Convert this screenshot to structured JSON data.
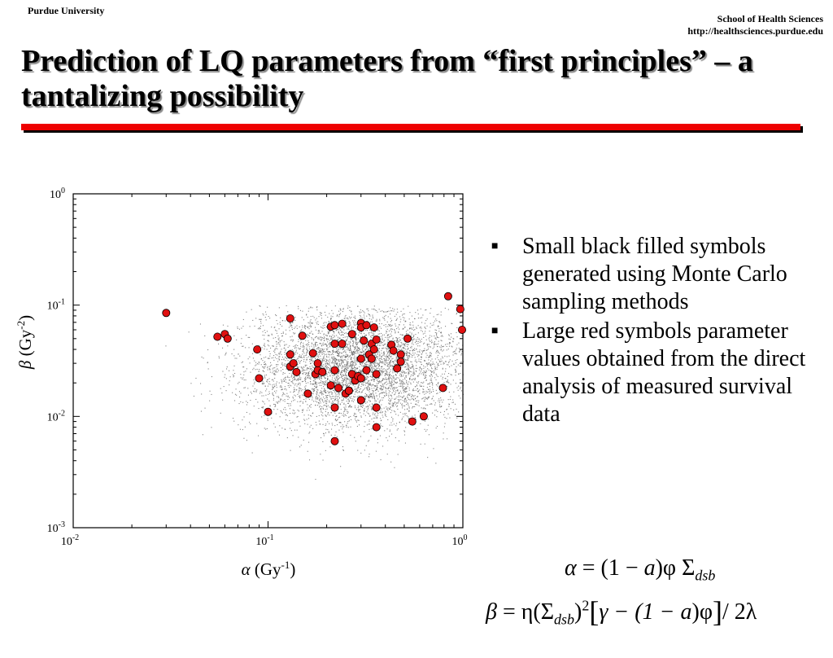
{
  "header": {
    "left": "Purdue University",
    "right_line1": "School of Health Sciences",
    "right_line2": "http://healthsciences.purdue.edu"
  },
  "title": "Prediction of LQ parameters from “first principles” – a tantalizing possibility",
  "colors": {
    "rule": "#ee0000",
    "points": "#e01010",
    "cloud": "#666666"
  },
  "chart_data": {
    "type": "scatter",
    "x_scale": "log",
    "y_scale": "log",
    "xlim": [
      0.01,
      1
    ],
    "ylim": [
      0.001,
      1
    ],
    "x_ticks": [
      {
        "base": "10",
        "exp": "-2"
      },
      {
        "base": "10",
        "exp": "-1"
      },
      {
        "base": "10",
        "exp": "0"
      }
    ],
    "y_ticks": [
      {
        "base": "10",
        "exp": "0"
      },
      {
        "base": "10",
        "exp": "-1"
      },
      {
        "base": "10",
        "exp": "-2"
      },
      {
        "base": "10",
        "exp": "-3"
      }
    ],
    "xlabel": {
      "symbol": "α",
      "unit_open": " (Gy",
      "unit_exp": "-1",
      "unit_close": ")"
    },
    "ylabel": {
      "symbol": "β",
      "unit_open": " (Gy",
      "unit_exp": "-2",
      "unit_close": ")"
    },
    "series": [
      {
        "name": "Small black filled symbols generated using Monte Carlo sampling methods",
        "style": "small black dots (Monte Carlo cloud)",
        "distribution": {
          "alpha_range": [
            0.02,
            1.0
          ],
          "beta_range": [
            0.002,
            0.1
          ]
        }
      },
      {
        "name": "Large red symbols parameter values obtained from the direct analysis of measured survival data",
        "points": [
          [
            0.03,
            0.085
          ],
          [
            0.055,
            0.052
          ],
          [
            0.06,
            0.055
          ],
          [
            0.062,
            0.05
          ],
          [
            0.088,
            0.04
          ],
          [
            0.09,
            0.022
          ],
          [
            0.1,
            0.011
          ],
          [
            0.13,
            0.076
          ],
          [
            0.13,
            0.036
          ],
          [
            0.13,
            0.028
          ],
          [
            0.135,
            0.03
          ],
          [
            0.14,
            0.025
          ],
          [
            0.15,
            0.053
          ],
          [
            0.16,
            0.016
          ],
          [
            0.17,
            0.037
          ],
          [
            0.175,
            0.024
          ],
          [
            0.18,
            0.026
          ],
          [
            0.18,
            0.03
          ],
          [
            0.19,
            0.025
          ],
          [
            0.21,
            0.064
          ],
          [
            0.21,
            0.019
          ],
          [
            0.22,
            0.066
          ],
          [
            0.22,
            0.045
          ],
          [
            0.22,
            0.026
          ],
          [
            0.22,
            0.012
          ],
          [
            0.22,
            0.006
          ],
          [
            0.23,
            0.018
          ],
          [
            0.24,
            0.068
          ],
          [
            0.24,
            0.045
          ],
          [
            0.25,
            0.016
          ],
          [
            0.26,
            0.017
          ],
          [
            0.26,
            0.017
          ],
          [
            0.27,
            0.055
          ],
          [
            0.27,
            0.024
          ],
          [
            0.28,
            0.021
          ],
          [
            0.29,
            0.023
          ],
          [
            0.3,
            0.069
          ],
          [
            0.3,
            0.063
          ],
          [
            0.3,
            0.033
          ],
          [
            0.3,
            0.022
          ],
          [
            0.3,
            0.014
          ],
          [
            0.31,
            0.048
          ],
          [
            0.32,
            0.066
          ],
          [
            0.32,
            0.026
          ],
          [
            0.33,
            0.036
          ],
          [
            0.34,
            0.033
          ],
          [
            0.34,
            0.045
          ],
          [
            0.35,
            0.063
          ],
          [
            0.35,
            0.04
          ],
          [
            0.36,
            0.049
          ],
          [
            0.36,
            0.024
          ],
          [
            0.36,
            0.012
          ],
          [
            0.36,
            0.008
          ],
          [
            0.43,
            0.044
          ],
          [
            0.44,
            0.039
          ],
          [
            0.46,
            0.027
          ],
          [
            0.48,
            0.036
          ],
          [
            0.48,
            0.031
          ],
          [
            0.52,
            0.05
          ],
          [
            0.55,
            0.009
          ],
          [
            0.63,
            0.01
          ],
          [
            0.79,
            0.018
          ],
          [
            0.84,
            0.12
          ],
          [
            0.97,
            0.092
          ],
          [
            0.99,
            0.06
          ]
        ]
      }
    ]
  },
  "bullets": [
    "Small black filled symbols generated using Monte Carlo sampling methods",
    "Large red symbols parameter values obtained from the direct analysis of measured survival data"
  ],
  "equations": {
    "alpha": {
      "lhs": "α",
      "eq": " = (1 − ",
      "a": "a",
      "rest": ")φ Σ",
      "sub": "dsb"
    },
    "beta": {
      "lhs": "β",
      "eq": " = η(Σ",
      "sub": "dsb",
      "close": ")",
      "sup": "2",
      "lb": "[",
      "mid": "γ − (1 − ",
      "a": "a",
      "mid2": ")φ",
      "rb": "]",
      "tail": "/ 2λ"
    }
  }
}
